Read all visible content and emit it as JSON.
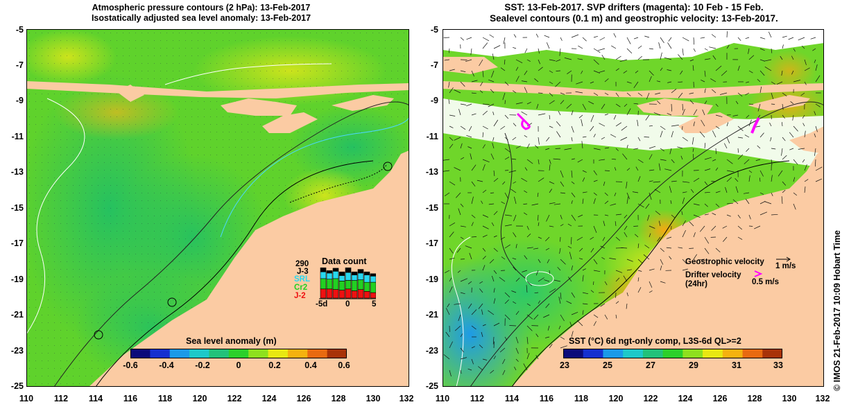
{
  "left_panel": {
    "title_lines": [
      "Atmospheric pressure contours (2 hPa): 13-Feb-2017",
      "Isostatically adjusted sea level anomaly: 13-Feb-2017"
    ],
    "y_ticks": [
      "-5",
      "-7",
      "-9",
      "-11",
      "-13",
      "-15",
      "-17",
      "-19",
      "-21",
      "-23",
      "-25"
    ],
    "x_ticks": [
      "110",
      "112",
      "114",
      "116",
      "118",
      "120",
      "122",
      "124",
      "126",
      "128",
      "130",
      "132"
    ],
    "colorbar": {
      "title": "Sea level anomaly (m)",
      "tick_labels": [
        "-0.6",
        "-0.4",
        "-0.2",
        "0",
        "0.2",
        "0.4",
        "0.6"
      ],
      "range": [
        -0.6,
        0.6
      ],
      "colors": [
        "#0b0b7a",
        "#1530d0",
        "#1a9ae8",
        "#1ec9c9",
        "#22c27a",
        "#2bd02b",
        "#8ee01e",
        "#e8e812",
        "#f5b20f",
        "#e86a10",
        "#a83208"
      ]
    },
    "data_count": {
      "title": "Data count",
      "max_label": "290",
      "series_labels": [
        "J-3",
        "SRL",
        "Cr2",
        "J-2"
      ],
      "series_colors": [
        "#000000",
        "#28d8f0",
        "#22d022",
        "#ee1111"
      ],
      "x_labels": [
        "-5d",
        "0",
        "5"
      ],
      "bars": [
        {
          "j3": 0.14,
          "srl": 0.22,
          "cr2": 0.34,
          "j2": 0.3
        },
        {
          "j3": 0.08,
          "srl": 0.2,
          "cr2": 0.32,
          "j2": 0.3
        },
        {
          "j3": 0.1,
          "srl": 0.24,
          "cr2": 0.36,
          "j2": 0.28
        },
        {
          "j3": 0.12,
          "srl": 0.18,
          "cr2": 0.3,
          "j2": 0.26
        },
        {
          "j3": 0.16,
          "srl": 0.26,
          "cr2": 0.28,
          "j2": 0.3
        },
        {
          "j3": 0.1,
          "srl": 0.18,
          "cr2": 0.34,
          "j2": 0.24
        },
        {
          "j3": 0.12,
          "srl": 0.22,
          "cr2": 0.32,
          "j2": 0.28
        },
        {
          "j3": 0.1,
          "srl": 0.24,
          "cr2": 0.3,
          "j2": 0.22
        },
        {
          "j3": 0.08,
          "srl": 0.2,
          "cr2": 0.34,
          "j2": 0.18
        }
      ]
    }
  },
  "right_panel": {
    "title_lines": [
      "SST: 13-Feb-2017. SVP drifters (magenta): 10 Feb - 15 Feb.",
      "Sealevel contours (0.1 m) and geostrophic velocity: 13-Feb-2017."
    ],
    "y_ticks": [
      "-5",
      "-7",
      "-9",
      "-11",
      "-13",
      "-15",
      "-17",
      "-19",
      "-21",
      "-23",
      "-25"
    ],
    "x_ticks": [
      "110",
      "112",
      "114",
      "116",
      "118",
      "120",
      "122",
      "124",
      "126",
      "128",
      "130",
      "132"
    ],
    "colorbar": {
      "title": "SST (°C) 6d ngt-only comp, L3S-6d QL>=2",
      "tick_labels": [
        "23",
        "25",
        "27",
        "29",
        "31",
        "33"
      ],
      "range": [
        23,
        33
      ],
      "colors": [
        "#0b0b7a",
        "#1530d0",
        "#1a9ae8",
        "#1ec9c9",
        "#22c27a",
        "#2bd02b",
        "#8ee01e",
        "#e8e812",
        "#f5b20f",
        "#e86a10",
        "#a83208"
      ]
    },
    "geostrophic_label": "Geostrophic velocity",
    "geostrophic_scale": "1 m/s",
    "drifter_label_line1": "Drifter velocity",
    "drifter_label_line2": "(24hr)",
    "drifter_scale": "0.5 m/s",
    "drifter_color": "#ff00ff"
  },
  "credit": "© IMOS 21-Feb-2017 10:09 Hobart Time",
  "land_color": "#fbcba3"
}
